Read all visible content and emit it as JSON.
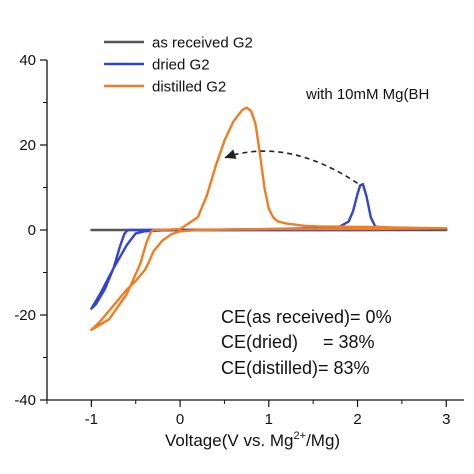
{
  "chart_data": {
    "type": "line",
    "xlabel_prefix": "Voltage(V vs. Mg",
    "xlabel_sup": "2+",
    "xlabel_suffix": "/Mg)",
    "xlim": [
      -1.5,
      3.2
    ],
    "ylim": [
      -40,
      40
    ],
    "x_ticks": [
      -1,
      0,
      1,
      2,
      3
    ],
    "y_ticks": [
      -40,
      -20,
      0,
      20,
      40
    ],
    "x_tick_labels": [
      "-1",
      "0",
      "1",
      "2",
      "3"
    ],
    "y_tick_labels": [
      "-40",
      "-20",
      "0",
      "20",
      "40"
    ],
    "legend_position": "top-left",
    "annotation_with": "with 10mM Mg(BH",
    "ce_labels": [
      "CE(as received)= 0%",
      "CE(dried)     = 38%",
      "CE(distilled)= 83%"
    ],
    "series": [
      {
        "name": "as received G2",
        "color": "#555555",
        "x": [
          -1.0,
          0.0,
          1.0,
          2.0,
          3.0
        ],
        "y": [
          0.0,
          0.0,
          0.0,
          0.0,
          0.0
        ]
      },
      {
        "name": "dried G2",
        "color": "#3344cc",
        "x": [
          -1.0,
          -0.95,
          -0.85,
          -0.75,
          -0.68,
          -0.63,
          -0.6,
          -0.58,
          -0.5,
          -0.3,
          0.0,
          0.5,
          1.0,
          1.5,
          1.8,
          1.9,
          1.95,
          2.0,
          2.03,
          2.06,
          2.1,
          2.15,
          2.2,
          2.4,
          2.7,
          3.0,
          2.5,
          2.0,
          1.5,
          1.0,
          0.5,
          0.0,
          -0.2,
          -0.4,
          -0.5,
          -0.6,
          -0.75,
          -0.9,
          -1.0
        ],
        "y": [
          -18.5,
          -17.5,
          -14,
          -9,
          -4,
          -1,
          -0.2,
          0,
          0,
          0,
          0,
          0.1,
          0.2,
          0.4,
          0.8,
          2.0,
          4.5,
          8.5,
          10.5,
          10.8,
          8.0,
          3.0,
          0.8,
          0.3,
          0.3,
          0.3,
          0.1,
          0.0,
          0.0,
          0.0,
          0.0,
          0.0,
          -0.1,
          -0.3,
          -0.8,
          -3.5,
          -9,
          -15,
          -18.5
        ]
      },
      {
        "name": "distilled G2",
        "color": "#ef7d22",
        "x": [
          -1.0,
          -0.8,
          -0.6,
          -0.45,
          -0.38,
          -0.33,
          -0.3,
          -0.2,
          0.0,
          0.2,
          0.3,
          0.4,
          0.5,
          0.6,
          0.7,
          0.75,
          0.8,
          0.85,
          0.9,
          0.95,
          1.0,
          1.05,
          1.1,
          1.2,
          1.4,
          1.6,
          1.8,
          2.0,
          2.2,
          2.4,
          2.7,
          3.0,
          2.5,
          2.0,
          1.5,
          1.0,
          0.5,
          0.2,
          0.0,
          -0.1,
          -0.2,
          -0.3,
          -0.35,
          -0.4,
          -0.5,
          -0.6,
          -0.7,
          -0.8,
          -0.9,
          -1.0
        ],
        "y": [
          -23.5,
          -21,
          -15,
          -8,
          -3,
          -0.5,
          0,
          0,
          0.2,
          3,
          8,
          15,
          21,
          25.5,
          28.2,
          28.8,
          28,
          25,
          18,
          10,
          5,
          3,
          2,
          1.5,
          1,
          0.8,
          0.8,
          0.7,
          0.7,
          0.6,
          0.5,
          0.4,
          0.3,
          0.2,
          0.2,
          0.2,
          0.1,
          0.0,
          -0.3,
          -1.0,
          -2.5,
          -5,
          -7.5,
          -9.5,
          -12,
          -14,
          -16.5,
          -19,
          -21.5,
          -23.5
        ]
      }
    ],
    "arrow": {
      "from": [
        2.0,
        11
      ],
      "to": [
        0.5,
        17
      ],
      "via": [
        1.2,
        22
      ],
      "color": "#222222"
    }
  }
}
